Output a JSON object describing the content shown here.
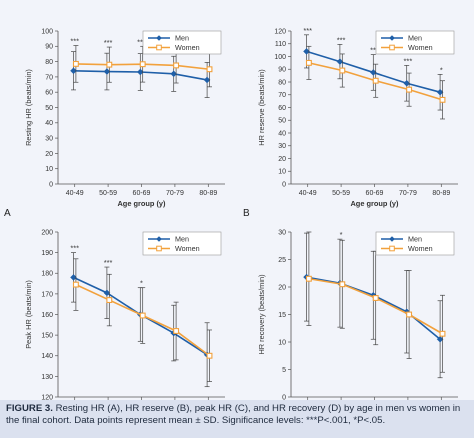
{
  "chart_data": [
    {
      "panel_letter": "A",
      "type": "line",
      "categories": [
        "40-49",
        "50-59",
        "60-69",
        "70-79",
        "80-89"
      ],
      "xlabel": "Age group (y)",
      "ylabel": "Resting HR (beats/min)",
      "ylim": [
        0,
        100
      ],
      "yticks": [
        0,
        10,
        20,
        30,
        40,
        50,
        60,
        70,
        80,
        90,
        100
      ],
      "legend": [
        "Men",
        "Women"
      ],
      "legend_position": "top-right",
      "significance": [
        "***",
        "***",
        "***",
        "***",
        "*"
      ],
      "series": [
        {
          "name": "Men",
          "values": [
            74.0,
            73.5,
            73.2,
            72.0,
            68.0
          ],
          "sd": [
            12.5,
            12.0,
            12.0,
            11.5,
            11.5
          ]
        },
        {
          "name": "Women",
          "values": [
            78.5,
            78.0,
            78.3,
            77.5,
            75.0
          ],
          "sd": [
            12.0,
            11.5,
            11.7,
            11.5,
            11.5
          ]
        }
      ]
    },
    {
      "panel_letter": "B",
      "type": "line",
      "categories": [
        "40-49",
        "50-59",
        "60-69",
        "70-79",
        "80-89"
      ],
      "xlabel": "Age group (y)",
      "ylabel": "HR reserve (beats/min)",
      "ylim": [
        0,
        120
      ],
      "yticks": [
        0,
        10,
        20,
        30,
        40,
        50,
        60,
        70,
        80,
        90,
        100,
        110,
        120
      ],
      "legend": [
        "Men",
        "Women"
      ],
      "legend_position": "top-right",
      "significance": [
        "***",
        "***",
        "***",
        "***",
        "*"
      ],
      "series": [
        {
          "name": "Men",
          "values": [
            104.0,
            96.0,
            87.5,
            79.0,
            72.0
          ],
          "sd": [
            13.0,
            13.5,
            14.0,
            14.0,
            14.0
          ]
        },
        {
          "name": "Women",
          "values": [
            95.0,
            89.0,
            81.0,
            74.0,
            66.0
          ],
          "sd": [
            13.0,
            13.0,
            13.0,
            13.0,
            15.0
          ]
        }
      ]
    },
    {
      "panel_letter": "C",
      "type": "line",
      "categories": [
        "40-49",
        "50-59",
        "60-69",
        "70-79",
        "80-89"
      ],
      "xlabel": "Age group (y)",
      "ylabel": "Peak HR (beats/min)",
      "ylim": [
        120,
        200
      ],
      "yticks": [
        120,
        130,
        140,
        150,
        160,
        170,
        180,
        190,
        200
      ],
      "legend": [
        "Men",
        "Women"
      ],
      "legend_position": "top-right",
      "significance": [
        "***",
        "***",
        "*",
        "",
        ""
      ],
      "series": [
        {
          "name": "Men",
          "values": [
            178.0,
            170.5,
            160.0,
            151.0,
            140.5
          ],
          "sd": [
            12.0,
            12.5,
            13.0,
            13.5,
            15.5
          ]
        },
        {
          "name": "Women",
          "values": [
            174.5,
            167.0,
            159.5,
            152.0,
            140.0
          ],
          "sd": [
            12.5,
            12.5,
            13.5,
            14.0,
            12.5
          ]
        }
      ]
    },
    {
      "panel_letter": "D",
      "type": "line",
      "categories": [
        "40-49",
        "50-59",
        "60-69",
        "70-79",
        "80-89"
      ],
      "xlabel": "Age group (y)",
      "ylabel": "HR recovery (beats/min)",
      "ylim": [
        0,
        30
      ],
      "yticks": [
        0,
        5,
        10,
        15,
        20,
        25,
        30
      ],
      "legend": [
        "Men",
        "Women"
      ],
      "legend_position": "top-right",
      "significance": [
        "",
        "*",
        "",
        "",
        ""
      ],
      "series": [
        {
          "name": "Men",
          "values": [
            21.8,
            20.7,
            18.5,
            15.5,
            10.5
          ],
          "sd": [
            8.0,
            8.0,
            8.0,
            7.5,
            7.0
          ]
        },
        {
          "name": "Women",
          "values": [
            21.5,
            20.5,
            18.0,
            15.0,
            11.5
          ],
          "sd": [
            8.5,
            8.0,
            8.5,
            8.0,
            7.0
          ]
        }
      ]
    }
  ],
  "colors": {
    "men": "#1f5fa8",
    "women": "#f2a13c",
    "errorbar": "#444444",
    "axis": "#555555"
  },
  "caption": {
    "label": "FIGURE 3.",
    "text": " Resting HR (A), HR reserve (B), peak HR (C), and HR recovery (D) by age in men vs women in the final cohort. Data points represent mean ± SD. Significance levels: ***P<.001, *P<.05."
  }
}
